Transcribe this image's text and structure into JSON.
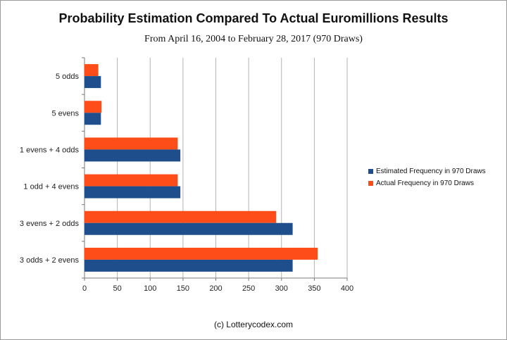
{
  "colors": {
    "estimated": "#1f4e8c",
    "actual": "#ff4d1a",
    "grid": "#b3b3b3",
    "axis": "#7a7a7a"
  },
  "chart_data": {
    "type": "bar",
    "orientation": "horizontal",
    "title": "Probability Estimation Compared To Actual Euromillions Results",
    "subtitle": "From April 16, 2004 to February 28, 2017  (970 Draws)",
    "categories": [
      "5 odds",
      "5 evens",
      "1 evens + 4 odds",
      "1 odd + 4 evens",
      "3 evens + 2 odds",
      "3 odds + 2 evens"
    ],
    "series": [
      {
        "name": "Estimated Frequency in 970 Draws",
        "values": [
          25,
          25,
          146,
          146,
          317,
          317
        ]
      },
      {
        "name": "Actual Frequency in 970 Draws",
        "values": [
          21,
          26,
          142,
          142,
          292,
          355
        ]
      }
    ],
    "xlim": [
      0,
      400
    ],
    "xticks": [
      0,
      50,
      100,
      150,
      200,
      250,
      300,
      350,
      400
    ],
    "xlabel": "",
    "ylabel": "",
    "grid": true,
    "legend": "right"
  },
  "credit": "(c) Lotterycodex.com"
}
